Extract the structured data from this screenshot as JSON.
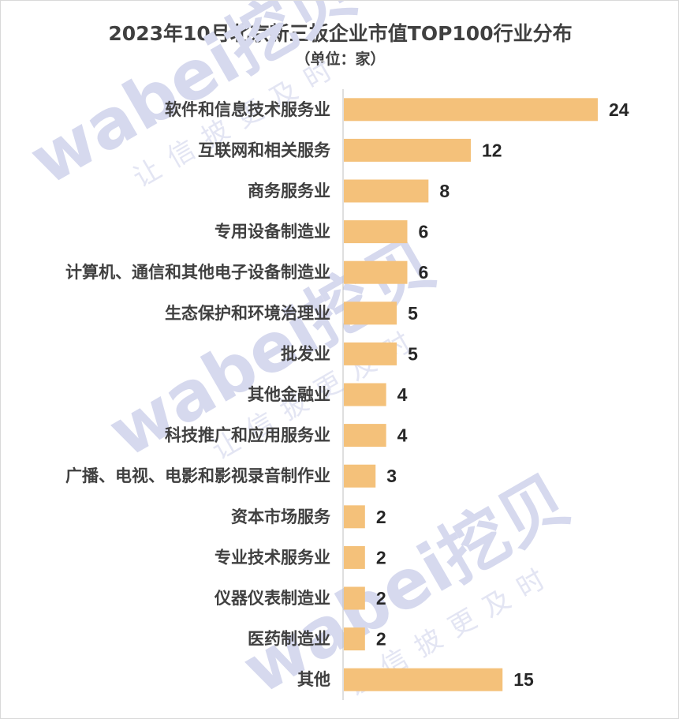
{
  "chart_data": {
    "type": "bar",
    "orientation": "horizontal",
    "title": "2023年10月北京新三板企业市值TOP100行业分布",
    "subtitle": "（单位：家）",
    "categories": [
      "软件和信息技术服务业",
      "互联网和相关服务",
      "商务服务业",
      "专用设备制造业",
      "计算机、通信和其他电子设备制造业",
      "生态保护和环境治理业",
      "批发业",
      "其他金融业",
      "科技推广和应用服务业",
      "广播、电视、电影和影视录音制作业",
      "资本市场服务",
      "专业技术服务业",
      "仪器仪表制造业",
      "医药制造业",
      "其他"
    ],
    "values": [
      24,
      12,
      8,
      6,
      6,
      5,
      5,
      4,
      4,
      3,
      2,
      2,
      2,
      2,
      15
    ],
    "xlim": [
      0,
      24
    ],
    "data_labels": true,
    "grid": false,
    "legend": "none",
    "bar_color": "#F4C17A"
  },
  "watermark": {
    "brand": "wabei挖贝",
    "slogan": "让信披更及时"
  }
}
